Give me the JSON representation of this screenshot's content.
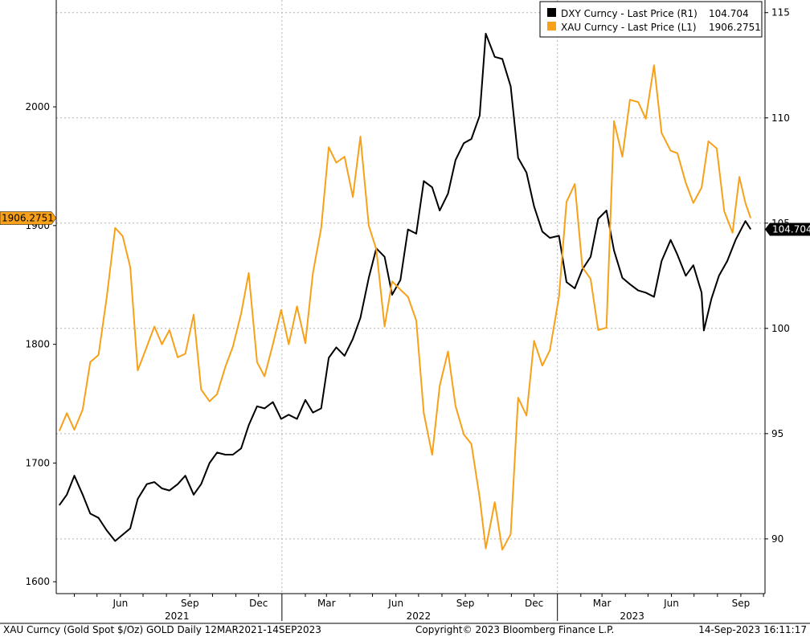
{
  "chart_data": {
    "type": "line",
    "footer": {
      "left": "XAU Curncy (Gold Spot  $/Oz) GOLD  Daily 12MAR2021-14SEP2023",
      "center": "Copyright© 2023 Bloomberg Finance L.P.",
      "right": "14-Sep-2023  16:11:17"
    },
    "x_ticks": [
      "Jun",
      "Sep",
      "Dec",
      "Mar",
      "Jun",
      "Sep",
      "Dec",
      "Mar",
      "Jun",
      "Sep"
    ],
    "year_labels": [
      "2021",
      "2022",
      "2023"
    ],
    "y_left": {
      "ticks": [
        "1600",
        "1700",
        "1800",
        "1900",
        "2000"
      ],
      "range": [
        1590,
        2090
      ]
    },
    "y_right": {
      "ticks": [
        "90",
        "95",
        "100",
        "105",
        "110",
        "115"
      ],
      "range": [
        87.4,
        115.6
      ]
    },
    "series": [
      {
        "name": "DXY Curncy - Last Price (R1)",
        "legend_value": "104.704",
        "last_label": "104.704",
        "axis": "right",
        "color": "#000000",
        "points": [
          [
            "2021-03-12",
            91.6
          ],
          [
            "2021-03-22",
            92.1
          ],
          [
            "2021-04-01",
            93.0
          ],
          [
            "2021-04-12",
            92.1
          ],
          [
            "2021-04-22",
            91.2
          ],
          [
            "2021-05-03",
            91.0
          ],
          [
            "2021-05-14",
            90.4
          ],
          [
            "2021-05-25",
            89.9
          ],
          [
            "2021-06-04",
            90.2
          ],
          [
            "2021-06-14",
            90.5
          ],
          [
            "2021-06-24",
            91.9
          ],
          [
            "2021-07-06",
            92.6
          ],
          [
            "2021-07-16",
            92.7
          ],
          [
            "2021-07-26",
            92.4
          ],
          [
            "2021-08-05",
            92.3
          ],
          [
            "2021-08-16",
            92.6
          ],
          [
            "2021-08-26",
            93.0
          ],
          [
            "2021-09-06",
            92.1
          ],
          [
            "2021-09-16",
            92.6
          ],
          [
            "2021-09-27",
            93.6
          ],
          [
            "2021-10-07",
            94.1
          ],
          [
            "2021-10-18",
            94.0
          ],
          [
            "2021-10-28",
            94.0
          ],
          [
            "2021-11-08",
            94.3
          ],
          [
            "2021-11-18",
            95.4
          ],
          [
            "2021-11-29",
            96.3
          ],
          [
            "2021-12-09",
            96.2
          ],
          [
            "2021-12-20",
            96.5
          ],
          [
            "2021-12-31",
            95.7
          ],
          [
            "2022-01-10",
            95.9
          ],
          [
            "2022-01-21",
            95.7
          ],
          [
            "2022-02-01",
            96.6
          ],
          [
            "2022-02-11",
            96.0
          ],
          [
            "2022-02-22",
            96.2
          ],
          [
            "2022-03-04",
            98.6
          ],
          [
            "2022-03-14",
            99.1
          ],
          [
            "2022-03-25",
            98.7
          ],
          [
            "2022-04-05",
            99.5
          ],
          [
            "2022-04-15",
            100.5
          ],
          [
            "2022-04-26",
            102.4
          ],
          [
            "2022-05-06",
            103.8
          ],
          [
            "2022-05-17",
            103.4
          ],
          [
            "2022-05-27",
            101.6
          ],
          [
            "2022-06-07",
            102.3
          ],
          [
            "2022-06-17",
            104.7
          ],
          [
            "2022-06-28",
            104.5
          ],
          [
            "2022-07-08",
            107.0
          ],
          [
            "2022-07-19",
            106.7
          ],
          [
            "2022-07-29",
            105.6
          ],
          [
            "2022-08-09",
            106.4
          ],
          [
            "2022-08-19",
            108.0
          ],
          [
            "2022-08-30",
            108.8
          ],
          [
            "2022-09-09",
            109.0
          ],
          [
            "2022-09-20",
            110.1
          ],
          [
            "2022-09-28",
            114.0
          ],
          [
            "2022-10-10",
            112.9
          ],
          [
            "2022-10-20",
            112.8
          ],
          [
            "2022-10-31",
            111.5
          ],
          [
            "2022-11-10",
            108.1
          ],
          [
            "2022-11-21",
            107.4
          ],
          [
            "2022-12-01",
            105.8
          ],
          [
            "2022-12-12",
            104.6
          ],
          [
            "2022-12-22",
            104.3
          ],
          [
            "2023-01-03",
            104.4
          ],
          [
            "2023-01-13",
            102.2
          ],
          [
            "2023-01-24",
            101.9
          ],
          [
            "2023-02-03",
            102.8
          ],
          [
            "2023-02-14",
            103.4
          ],
          [
            "2023-02-24",
            105.2
          ],
          [
            "2023-03-07",
            105.6
          ],
          [
            "2023-03-17",
            103.7
          ],
          [
            "2023-03-28",
            102.4
          ],
          [
            "2023-04-07",
            102.1
          ],
          [
            "2023-04-18",
            101.8
          ],
          [
            "2023-04-28",
            101.7
          ],
          [
            "2023-05-09",
            101.5
          ],
          [
            "2023-05-19",
            103.2
          ],
          [
            "2023-05-31",
            104.2
          ],
          [
            "2023-06-09",
            103.5
          ],
          [
            "2023-06-20",
            102.5
          ],
          [
            "2023-06-30",
            103.0
          ],
          [
            "2023-07-11",
            101.7
          ],
          [
            "2023-07-14",
            99.9
          ],
          [
            "2023-07-24",
            101.4
          ],
          [
            "2023-08-03",
            102.5
          ],
          [
            "2023-08-14",
            103.2
          ],
          [
            "2023-08-25",
            104.2
          ],
          [
            "2023-09-07",
            105.1
          ],
          [
            "2023-09-14",
            104.704
          ]
        ]
      },
      {
        "name": "XAU Curncy - Last Price (L1)",
        "legend_value": "1906.2751",
        "last_label": "1906.2751",
        "axis": "left",
        "color": "#f7a11a",
        "points": [
          [
            "2021-03-12",
            1727
          ],
          [
            "2021-03-22",
            1742
          ],
          [
            "2021-04-01",
            1728
          ],
          [
            "2021-04-12",
            1745
          ],
          [
            "2021-04-22",
            1785
          ],
          [
            "2021-05-03",
            1791
          ],
          [
            "2021-05-14",
            1840
          ],
          [
            "2021-05-25",
            1898
          ],
          [
            "2021-06-04",
            1891
          ],
          [
            "2021-06-14",
            1865
          ],
          [
            "2021-06-24",
            1778
          ],
          [
            "2021-07-06",
            1798
          ],
          [
            "2021-07-16",
            1815
          ],
          [
            "2021-07-26",
            1800
          ],
          [
            "2021-08-05",
            1812
          ],
          [
            "2021-08-16",
            1789
          ],
          [
            "2021-08-26",
            1792
          ],
          [
            "2021-09-06",
            1825
          ],
          [
            "2021-09-16",
            1762
          ],
          [
            "2021-09-27",
            1752
          ],
          [
            "2021-10-07",
            1758
          ],
          [
            "2021-10-18",
            1781
          ],
          [
            "2021-10-28",
            1798
          ],
          [
            "2021-11-08",
            1826
          ],
          [
            "2021-11-18",
            1860
          ],
          [
            "2021-11-29",
            1785
          ],
          [
            "2021-12-09",
            1773
          ],
          [
            "2021-12-20",
            1800
          ],
          [
            "2021-12-31",
            1829
          ],
          [
            "2022-01-10",
            1800
          ],
          [
            "2022-01-21",
            1832
          ],
          [
            "2022-02-01",
            1801
          ],
          [
            "2022-02-11",
            1860
          ],
          [
            "2022-02-22",
            1898
          ],
          [
            "2022-03-04",
            1966
          ],
          [
            "2022-03-14",
            1953
          ],
          [
            "2022-03-25",
            1958
          ],
          [
            "2022-04-05",
            1924
          ],
          [
            "2022-04-15",
            1975
          ],
          [
            "2022-04-26",
            1900
          ],
          [
            "2022-05-06",
            1880
          ],
          [
            "2022-05-17",
            1815
          ],
          [
            "2022-05-27",
            1853
          ],
          [
            "2022-06-07",
            1846
          ],
          [
            "2022-06-17",
            1840
          ],
          [
            "2022-06-28",
            1820
          ],
          [
            "2022-07-08",
            1742
          ],
          [
            "2022-07-19",
            1707
          ],
          [
            "2022-07-29",
            1765
          ],
          [
            "2022-08-09",
            1794
          ],
          [
            "2022-08-19",
            1748
          ],
          [
            "2022-08-30",
            1724
          ],
          [
            "2022-09-09",
            1716
          ],
          [
            "2022-09-20",
            1671
          ],
          [
            "2022-09-28",
            1628
          ],
          [
            "2022-10-10",
            1667
          ],
          [
            "2022-10-20",
            1627
          ],
          [
            "2022-10-31",
            1640
          ],
          [
            "2022-11-10",
            1755
          ],
          [
            "2022-11-21",
            1740
          ],
          [
            "2022-12-01",
            1803
          ],
          [
            "2022-12-12",
            1782
          ],
          [
            "2022-12-22",
            1795
          ],
          [
            "2023-01-03",
            1840
          ],
          [
            "2023-01-13",
            1920
          ],
          [
            "2023-01-24",
            1935
          ],
          [
            "2023-02-03",
            1865
          ],
          [
            "2023-02-14",
            1855
          ],
          [
            "2023-02-24",
            1812
          ],
          [
            "2023-03-07",
            1814
          ],
          [
            "2023-03-17",
            1988
          ],
          [
            "2023-03-28",
            1958
          ],
          [
            "2023-04-07",
            2006
          ],
          [
            "2023-04-18",
            2004
          ],
          [
            "2023-04-28",
            1990
          ],
          [
            "2023-05-09",
            2035
          ],
          [
            "2023-05-19",
            1978
          ],
          [
            "2023-05-31",
            1963
          ],
          [
            "2023-06-09",
            1961
          ],
          [
            "2023-06-20",
            1936
          ],
          [
            "2023-06-30",
            1919
          ],
          [
            "2023-07-11",
            1932
          ],
          [
            "2023-07-20",
            1971
          ],
          [
            "2023-07-31",
            1965
          ],
          [
            "2023-08-10",
            1912
          ],
          [
            "2023-08-21",
            1894
          ],
          [
            "2023-08-30",
            1941
          ],
          [
            "2023-09-07",
            1919
          ],
          [
            "2023-09-14",
            1906.2751
          ]
        ]
      }
    ]
  }
}
